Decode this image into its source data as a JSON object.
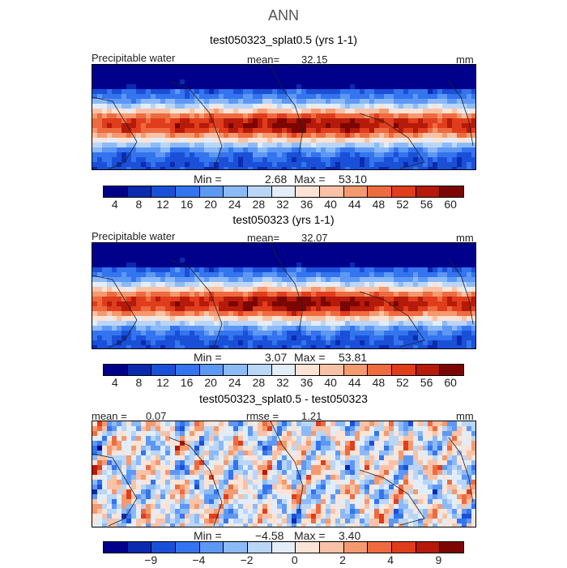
{
  "title": "ANN",
  "colors": {
    "abs_scale": [
      "#00008b",
      "#0a2bb0",
      "#1a50d8",
      "#3474ee",
      "#5e98f5",
      "#8cbaf7",
      "#b9d6f8",
      "#e2edf8",
      "#fbe3d5",
      "#f9c2a6",
      "#f5996f",
      "#ee6b40",
      "#e03d1d",
      "#b51a0a",
      "#7c0604"
    ],
    "diff_scale": [
      "#00008b",
      "#0a2bb0",
      "#1a50d8",
      "#3474ee",
      "#5e98f5",
      "#8cbaf7",
      "#b9d6f8",
      "#e2edf8",
      "#fbe3d5",
      "#f9c2a6",
      "#f5996f",
      "#ee6b40",
      "#e03d1d",
      "#b51a0a",
      "#7c0604"
    ]
  },
  "chart_data": [
    {
      "type": "heatmap",
      "title": "test050323_splat0.5 (yrs 1-1)",
      "variable_label": "Precipitable water",
      "mean_label": "mean=",
      "mean_value": "32.15",
      "units": "mm",
      "min_label": "Min =",
      "min_value": "2.68",
      "max_label": "Max =",
      "max_value": "53.10",
      "colorbar_ticks": [
        "4",
        "8",
        "12",
        "16",
        "20",
        "24",
        "28",
        "32",
        "36",
        "40",
        "44",
        "48",
        "52",
        "56",
        "60"
      ],
      "field": {
        "kind": "absolute",
        "peak": 53.1,
        "floor": 2.68
      }
    },
    {
      "type": "heatmap",
      "title": "test050323 (yrs 1-1)",
      "variable_label": "Precipitable water",
      "mean_label": "mean=",
      "mean_value": "32.07",
      "units": "mm",
      "min_label": "Min =",
      "min_value": "3.07",
      "max_label": "Max =",
      "max_value": "53.81",
      "colorbar_ticks": [
        "4",
        "8",
        "12",
        "16",
        "20",
        "24",
        "28",
        "32",
        "36",
        "40",
        "44",
        "48",
        "52",
        "56",
        "60"
      ],
      "field": {
        "kind": "absolute",
        "peak": 53.81,
        "floor": 3.07
      }
    },
    {
      "type": "heatmap",
      "title": "test050323_splat0.5 - test050323",
      "mean_label": "mean =",
      "mean_value": "0.07",
      "rmse_label": "rmse =",
      "rmse_value": "1.21",
      "units": "mm",
      "min_label": "Min =",
      "min_value": "−4.58",
      "max_label": "Max =",
      "max_value": "3.40",
      "colorbar_ticks": [
        "−9",
        "−4",
        "−2",
        "0",
        "2",
        "4",
        "9"
      ],
      "field": {
        "kind": "difference",
        "min": -4.58,
        "max": 3.4
      }
    }
  ]
}
